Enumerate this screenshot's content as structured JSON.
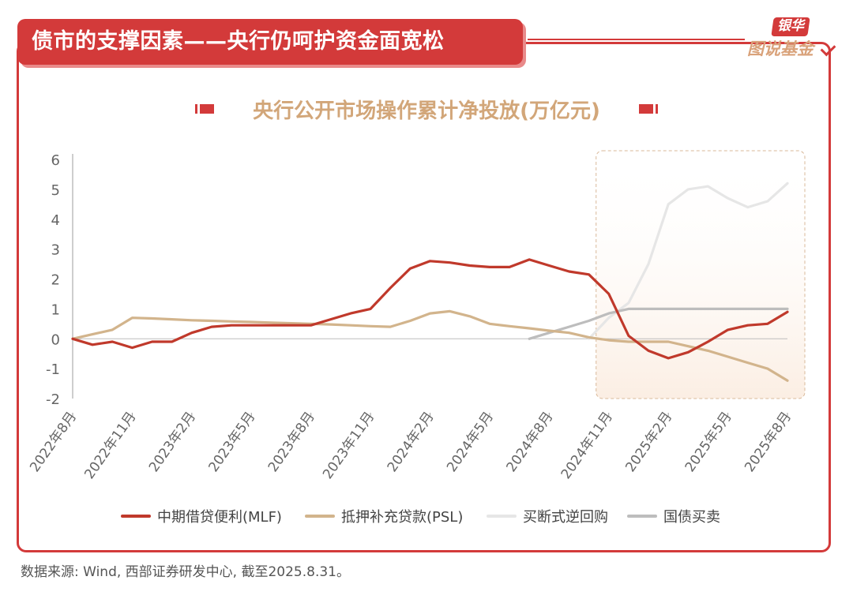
{
  "header": {
    "title": "债市的支撑因素——央行仍呵护资金面宽松"
  },
  "brand": {
    "top": "银华",
    "bottom": "图说基金"
  },
  "source": "数据来源: Wind, 西部证券研发中心, 截至2025.8.31。",
  "colors": {
    "accent": "#d33a3a",
    "mlf": "#c0392b",
    "psl": "#d2b48c",
    "outright": "#e6e6e6",
    "bond": "#bdbdbd",
    "highlight": "#fbeee3"
  },
  "chart_data": {
    "type": "line",
    "title": "央行公开市场操作累计净投放(万亿元)",
    "xlabel": "",
    "ylabel": "",
    "ylim": [
      -2,
      6
    ],
    "yticks": [
      "6",
      "5",
      "4",
      "3",
      "2",
      "1",
      "0",
      "-1",
      "-2"
    ],
    "categories": [
      "2022年8月",
      "2022年11月",
      "2023年2月",
      "2023年5月",
      "2023年8月",
      "2023年11月",
      "2024年2月",
      "2024年5月",
      "2024年8月",
      "2024年11月",
      "2025年2月",
      "2025年5月",
      "2025年8月"
    ],
    "x_start": "2022年8月",
    "x_end": "2025年8月",
    "grid": false,
    "legend_position": "bottom",
    "highlight_range": [
      "2024年11月",
      "2025年8月"
    ],
    "series": [
      {
        "name": "中期借贷便利(MLF)",
        "color": "#c0392b",
        "points": [
          [
            "2022-08",
            0.0
          ],
          [
            "2022-09",
            -0.2
          ],
          [
            "2022-10",
            -0.1
          ],
          [
            "2022-11",
            -0.3
          ],
          [
            "2022-12",
            -0.1
          ],
          [
            "2023-01",
            -0.1
          ],
          [
            "2023-02",
            0.2
          ],
          [
            "2023-03",
            0.4
          ],
          [
            "2023-04",
            0.45
          ],
          [
            "2023-05",
            0.45
          ],
          [
            "2023-06",
            0.45
          ],
          [
            "2023-07",
            0.45
          ],
          [
            "2023-08",
            0.45
          ],
          [
            "2023-09",
            0.65
          ],
          [
            "2023-10",
            0.85
          ],
          [
            "2023-11",
            1.0
          ],
          [
            "2023-12",
            1.7
          ],
          [
            "2024-01",
            2.35
          ],
          [
            "2024-02",
            2.6
          ],
          [
            "2024-03",
            2.55
          ],
          [
            "2024-04",
            2.45
          ],
          [
            "2024-05",
            2.4
          ],
          [
            "2024-06",
            2.4
          ],
          [
            "2024-07",
            2.65
          ],
          [
            "2024-08",
            2.45
          ],
          [
            "2024-09",
            2.25
          ],
          [
            "2024-10",
            2.15
          ],
          [
            "2024-11",
            1.5
          ],
          [
            "2024-12",
            0.1
          ],
          [
            "2025-01",
            -0.4
          ],
          [
            "2025-02",
            -0.65
          ],
          [
            "2025-03",
            -0.45
          ],
          [
            "2025-04",
            -0.1
          ],
          [
            "2025-05",
            0.3
          ],
          [
            "2025-06",
            0.45
          ],
          [
            "2025-07",
            0.5
          ],
          [
            "2025-08",
            0.9
          ]
        ]
      },
      {
        "name": "抵押补充贷款(PSL)",
        "color": "#d2b48c",
        "points": [
          [
            "2022-08",
            0.0
          ],
          [
            "2022-09",
            0.15
          ],
          [
            "2022-10",
            0.3
          ],
          [
            "2022-11",
            0.7
          ],
          [
            "2022-12",
            0.68
          ],
          [
            "2023-01",
            0.65
          ],
          [
            "2023-02",
            0.62
          ],
          [
            "2023-03",
            0.6
          ],
          [
            "2023-04",
            0.58
          ],
          [
            "2023-05",
            0.56
          ],
          [
            "2023-06",
            0.54
          ],
          [
            "2023-07",
            0.52
          ],
          [
            "2023-08",
            0.5
          ],
          [
            "2023-09",
            0.48
          ],
          [
            "2023-10",
            0.45
          ],
          [
            "2023-11",
            0.42
          ],
          [
            "2023-12",
            0.4
          ],
          [
            "2024-01",
            0.6
          ],
          [
            "2024-02",
            0.85
          ],
          [
            "2024-03",
            0.92
          ],
          [
            "2024-04",
            0.75
          ],
          [
            "2024-05",
            0.5
          ],
          [
            "2024-06",
            0.42
          ],
          [
            "2024-07",
            0.35
          ],
          [
            "2024-08",
            0.27
          ],
          [
            "2024-09",
            0.2
          ],
          [
            "2024-10",
            0.05
          ],
          [
            "2024-11",
            -0.05
          ],
          [
            "2024-12",
            -0.1
          ],
          [
            "2025-01",
            -0.1
          ],
          [
            "2025-02",
            -0.1
          ],
          [
            "2025-03",
            -0.25
          ],
          [
            "2025-04",
            -0.4
          ],
          [
            "2025-05",
            -0.6
          ],
          [
            "2025-06",
            -0.8
          ],
          [
            "2025-07",
            -1.0
          ],
          [
            "2025-08",
            -1.4
          ]
        ]
      },
      {
        "name": "买断式逆回购",
        "color": "#e6e6e6",
        "points": [
          [
            "2024-10",
            0.0
          ],
          [
            "2024-11",
            0.7
          ],
          [
            "2024-12",
            1.2
          ],
          [
            "2025-01",
            2.5
          ],
          [
            "2025-02",
            4.5
          ],
          [
            "2025-03",
            5.0
          ],
          [
            "2025-04",
            5.1
          ],
          [
            "2025-05",
            4.7
          ],
          [
            "2025-06",
            4.4
          ],
          [
            "2025-07",
            4.6
          ],
          [
            "2025-08",
            5.2
          ]
        ]
      },
      {
        "name": "国债买卖",
        "color": "#bdbdbd",
        "points": [
          [
            "2024-07",
            0.0
          ],
          [
            "2024-08",
            0.2
          ],
          [
            "2024-09",
            0.4
          ],
          [
            "2024-10",
            0.6
          ],
          [
            "2024-11",
            0.85
          ],
          [
            "2024-12",
            1.0
          ],
          [
            "2025-01",
            1.0
          ],
          [
            "2025-02",
            1.0
          ],
          [
            "2025-03",
            1.0
          ],
          [
            "2025-04",
            1.0
          ],
          [
            "2025-05",
            1.0
          ],
          [
            "2025-06",
            1.0
          ],
          [
            "2025-07",
            1.0
          ],
          [
            "2025-08",
            1.0
          ]
        ]
      }
    ]
  }
}
